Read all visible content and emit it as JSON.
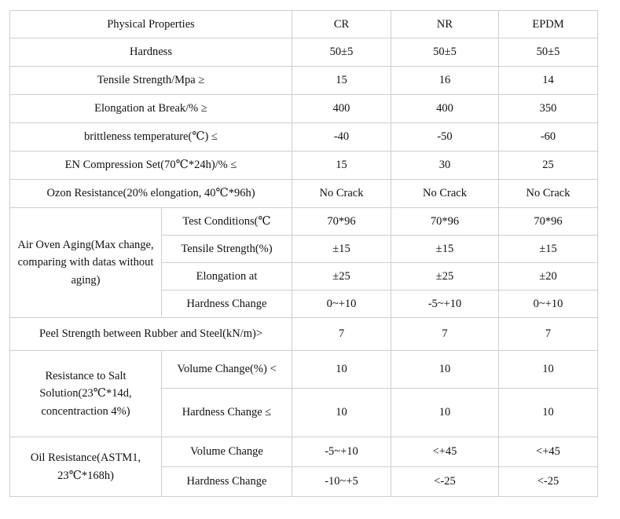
{
  "header": {
    "property": "Physical Properties",
    "cr": "CR",
    "nr": "NR",
    "epdm": "EPDM"
  },
  "hardness": {
    "label": "Hardness",
    "cr": "50±5",
    "nr": "50±5",
    "epdm": "50±5"
  },
  "tensile": {
    "label": "Tensile Strength/Mpa ≥",
    "cr": "15",
    "nr": "16",
    "epdm": "14"
  },
  "elongation": {
    "label": "Elongation at Break/% ≥",
    "cr": "400",
    "nr": "400",
    "epdm": "350"
  },
  "brittleness": {
    "label": "brittleness temperature(℃) ≤",
    "cr": "-40",
    "nr": "-50",
    "epdm": "-60"
  },
  "compression": {
    "label": "EN Compression Set(70℃*24h)/% ≤",
    "cr": "15",
    "nr": "30",
    "epdm": "25"
  },
  "ozone": {
    "label": "Ozon Resistance(20% elongation, 40℃*96h)",
    "cr": "No Crack",
    "nr": "No Crack",
    "epdm": "No Crack"
  },
  "air_aging": {
    "label": "Air Oven Aging(Max change, comparing with datas without aging)",
    "rows": [
      {
        "label": "Test Conditions(℃",
        "cr": "70*96",
        "nr": "70*96",
        "epdm": "70*96"
      },
      {
        "label": "Tensile Strength(%)",
        "cr": "±15",
        "nr": "±15",
        "epdm": "±15"
      },
      {
        "label": "Elongation at",
        "cr": "±25",
        "nr": "±25",
        "epdm": "±20"
      },
      {
        "label": "Hardness Change",
        "cr": "0~+10",
        "nr": "-5~+10",
        "epdm": "0~+10"
      }
    ]
  },
  "peel": {
    "label": "Peel Strength between Rubber and Steel(kN/m)>",
    "cr": "7",
    "nr": "7",
    "epdm": "7"
  },
  "salt": {
    "label": "Resistance to Salt Solution(23℃*14d, concentraction 4%)",
    "rows": [
      {
        "label": "Volume Change(%) <",
        "cr": "10",
        "nr": "10",
        "epdm": "10"
      },
      {
        "label": "Hardness Change ≤",
        "cr": "10",
        "nr": "10",
        "epdm": "10"
      }
    ]
  },
  "oil": {
    "label": "Oil Resistance(ASTM1, 23℃*168h)",
    "rows": [
      {
        "label": "Volume Change",
        "cr": "-5~+10",
        "nr": "<+45",
        "epdm": "<+45"
      },
      {
        "label": "Hardness Change",
        "cr": "-10~+5",
        "nr": "<-25",
        "epdm": "<-25"
      }
    ]
  }
}
